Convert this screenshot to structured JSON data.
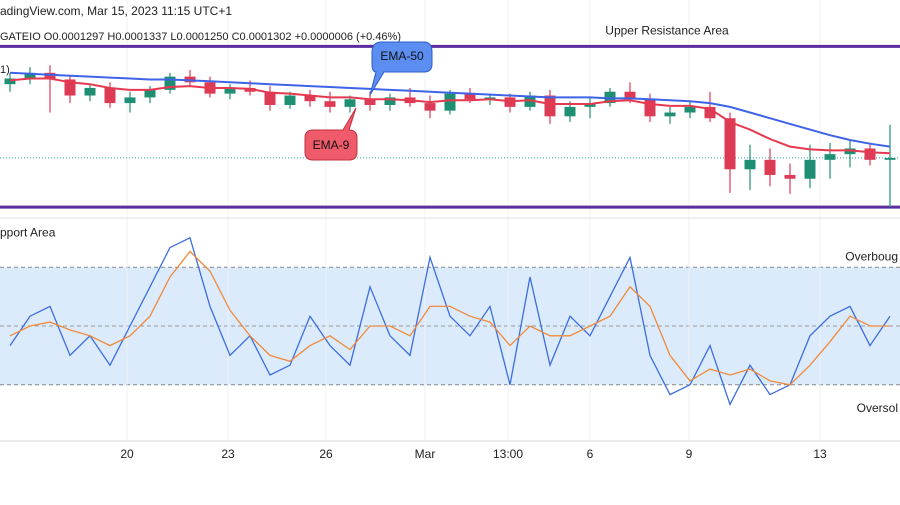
{
  "chart_data": [
    {
      "type": "candlestick",
      "title": "adingView.com, Mar 15, 2023 11:15 UTC+1",
      "subtitle": "GATEIO O0.0001297 H0.0001337 L0.0001250 C0.0001302 +0.0000006 (+0.46%)",
      "indicator_label": "1)",
      "xlim": [
        -0.5,
        44.5
      ],
      "ylim": [
        0.000123,
        0.000145
      ],
      "up_color": "#1f8f74",
      "down_color": "#dc3a55",
      "open": [
        0.000138,
        0.0001386,
        0.0001392,
        0.0001385,
        0.0001368,
        0.0001376,
        0.000136,
        0.0001366,
        0.0001374,
        0.0001388,
        0.0001382,
        0.000137,
        0.0001376,
        0.0001372,
        0.0001358,
        0.0001368,
        0.0001362,
        0.0001356,
        0.0001364,
        0.0001358,
        0.0001366,
        0.000136,
        0.0001352,
        0.000137,
        0.0001364,
        0.0001366,
        0.0001356,
        0.0001368,
        0.0001346,
        0.0001356,
        0.000136,
        0.0001372,
        0.0001364,
        0.0001346,
        0.000135,
        0.0001356,
        0.0001344,
        0.000129,
        0.00013,
        0.0001284,
        0.000128,
        0.00013,
        0.0001306,
        0.0001312,
        0.00013
      ],
      "high": [
        0.0001392,
        0.0001398,
        0.00014,
        0.000139,
        0.000138,
        0.0001382,
        0.0001372,
        0.0001378,
        0.0001392,
        0.0001395,
        0.0001388,
        0.000138,
        0.0001384,
        0.0001378,
        0.0001372,
        0.0001374,
        0.0001372,
        0.0001368,
        0.0001372,
        0.000137,
        0.0001376,
        0.0001368,
        0.0001374,
        0.0001376,
        0.000137,
        0.000137,
        0.0001372,
        0.0001374,
        0.0001362,
        0.0001366,
        0.0001376,
        0.0001382,
        0.000137,
        0.0001356,
        0.0001362,
        0.0001372,
        0.000135,
        0.0001316,
        0.0001312,
        0.0001296,
        0.0001316,
        0.0001318,
        0.000132,
        0.0001318,
        0.0001337
      ],
      "low": [
        0.0001372,
        0.000138,
        0.000135,
        0.000136,
        0.0001362,
        0.0001355,
        0.000135,
        0.000136,
        0.000137,
        0.0001378,
        0.0001366,
        0.0001364,
        0.0001368,
        0.0001352,
        0.0001354,
        0.0001356,
        0.000135,
        0.000135,
        0.0001352,
        0.0001352,
        0.0001356,
        0.0001344,
        0.0001348,
        0.000136,
        0.0001358,
        0.000135,
        0.0001352,
        0.0001338,
        0.000134,
        0.0001344,
        0.0001356,
        0.000136,
        0.000134,
        0.0001338,
        0.0001344,
        0.000134,
        0.0001265,
        0.0001268,
        0.0001272,
        0.0001264,
        0.000127,
        0.000128,
        0.0001292,
        0.0001294,
        0.000125
      ],
      "close": [
        0.0001386,
        0.0001392,
        0.0001385,
        0.0001368,
        0.0001376,
        0.000136,
        0.0001366,
        0.0001374,
        0.0001388,
        0.0001382,
        0.000137,
        0.0001376,
        0.0001372,
        0.0001358,
        0.0001368,
        0.0001362,
        0.0001356,
        0.0001364,
        0.0001358,
        0.0001366,
        0.000136,
        0.0001352,
        0.000137,
        0.0001364,
        0.0001366,
        0.0001356,
        0.0001368,
        0.0001346,
        0.0001356,
        0.000136,
        0.0001372,
        0.0001364,
        0.0001346,
        0.000135,
        0.0001356,
        0.0001344,
        0.000129,
        0.00013,
        0.0001284,
        0.000128,
        0.00013,
        0.0001306,
        0.0001312,
        0.00013,
        0.0001302
      ],
      "series": [
        {
          "name": "EMA-50",
          "color": "#3f63e6",
          "values": [
            0.0001392,
            0.0001391,
            0.000139,
            0.0001389,
            0.0001388,
            0.0001387,
            0.0001386,
            0.0001385,
            0.0001385,
            0.0001384,
            0.0001383,
            0.0001382,
            0.0001381,
            0.000138,
            0.0001379,
            0.0001378,
            0.0001377,
            0.0001376,
            0.0001375,
            0.0001374,
            0.0001373,
            0.0001372,
            0.0001371,
            0.000137,
            0.0001369,
            0.0001368,
            0.0001367,
            0.0001366,
            0.0001366,
            0.0001366,
            0.0001365,
            0.0001365,
            0.0001364,
            0.0001363,
            0.0001362,
            0.000136,
            0.0001356,
            0.000135,
            0.0001344,
            0.0001338,
            0.0001332,
            0.0001326,
            0.0001321,
            0.0001317,
            0.0001314
          ]
        },
        {
          "name": "EMA-9",
          "color": "#e53950",
          "values": [
            0.0001384,
            0.0001386,
            0.0001386,
            0.0001382,
            0.000138,
            0.0001376,
            0.0001374,
            0.0001374,
            0.0001377,
            0.0001378,
            0.0001376,
            0.0001376,
            0.0001375,
            0.0001371,
            0.000137,
            0.0001368,
            0.0001366,
            0.0001366,
            0.0001364,
            0.0001364,
            0.0001363,
            0.0001361,
            0.0001363,
            0.0001363,
            0.0001364,
            0.0001362,
            0.0001363,
            0.0001359,
            0.0001359,
            0.0001359,
            0.0001362,
            0.0001363,
            0.0001359,
            0.0001357,
            0.0001357,
            0.0001354,
            0.000134,
            0.0001332,
            0.0001322,
            0.0001314,
            0.0001311,
            0.000131,
            0.000131,
            0.0001308,
            0.0001307
          ]
        }
      ],
      "price_line": {
        "value": 0.0001302,
        "color": "#2aa39a"
      },
      "levels": [
        {
          "label": "Upper Resistance Area",
          "value": 0.000142,
          "color": "#5b2d9e"
        },
        {
          "label": "pport Area",
          "value": 0.000125,
          "color": "#5b2d9e"
        }
      ],
      "grid": true
    },
    {
      "type": "line",
      "xlim": [
        -0.5,
        44.5
      ],
      "ylim": [
        0,
        100
      ],
      "xticks": [
        {
          "value": 5.85,
          "label": "20"
        },
        {
          "value": 10.9,
          "label": "23"
        },
        {
          "value": 15.8,
          "label": "26"
        },
        {
          "value": 20.75,
          "label": "Mar"
        },
        {
          "value": 24.9,
          "label": "13:00"
        },
        {
          "value": 29,
          "label": "6"
        },
        {
          "value": 33.95,
          "label": "9"
        },
        {
          "value": 40.5,
          "label": "13"
        }
      ],
      "bands": [
        {
          "value": 80,
          "label": "Overboug"
        },
        {
          "value": 20,
          "label": "Oversol"
        }
      ],
      "midline": 50,
      "band_fill": "#dcebfb",
      "series": [
        {
          "color": "#3d6ee0",
          "values": [
            40,
            55,
            60,
            35,
            45,
            30,
            50,
            70,
            90,
            95,
            60,
            35,
            45,
            25,
            30,
            55,
            40,
            30,
            70,
            45,
            35,
            85,
            55,
            45,
            60,
            20,
            75,
            30,
            55,
            45,
            65,
            85,
            35,
            15,
            20,
            40,
            10,
            30,
            15,
            20,
            45,
            55,
            60,
            40,
            55
          ]
        },
        {
          "color": "#f08a3c",
          "values": [
            45,
            50,
            52,
            48,
            45,
            40,
            45,
            55,
            75,
            88,
            78,
            58,
            45,
            35,
            32,
            40,
            45,
            38,
            50,
            50,
            45,
            60,
            60,
            55,
            52,
            40,
            50,
            45,
            45,
            50,
            55,
            70,
            60,
            35,
            22,
            28,
            25,
            28,
            22,
            20,
            30,
            42,
            55,
            50,
            50
          ]
        }
      ],
      "grid": true
    }
  ]
}
